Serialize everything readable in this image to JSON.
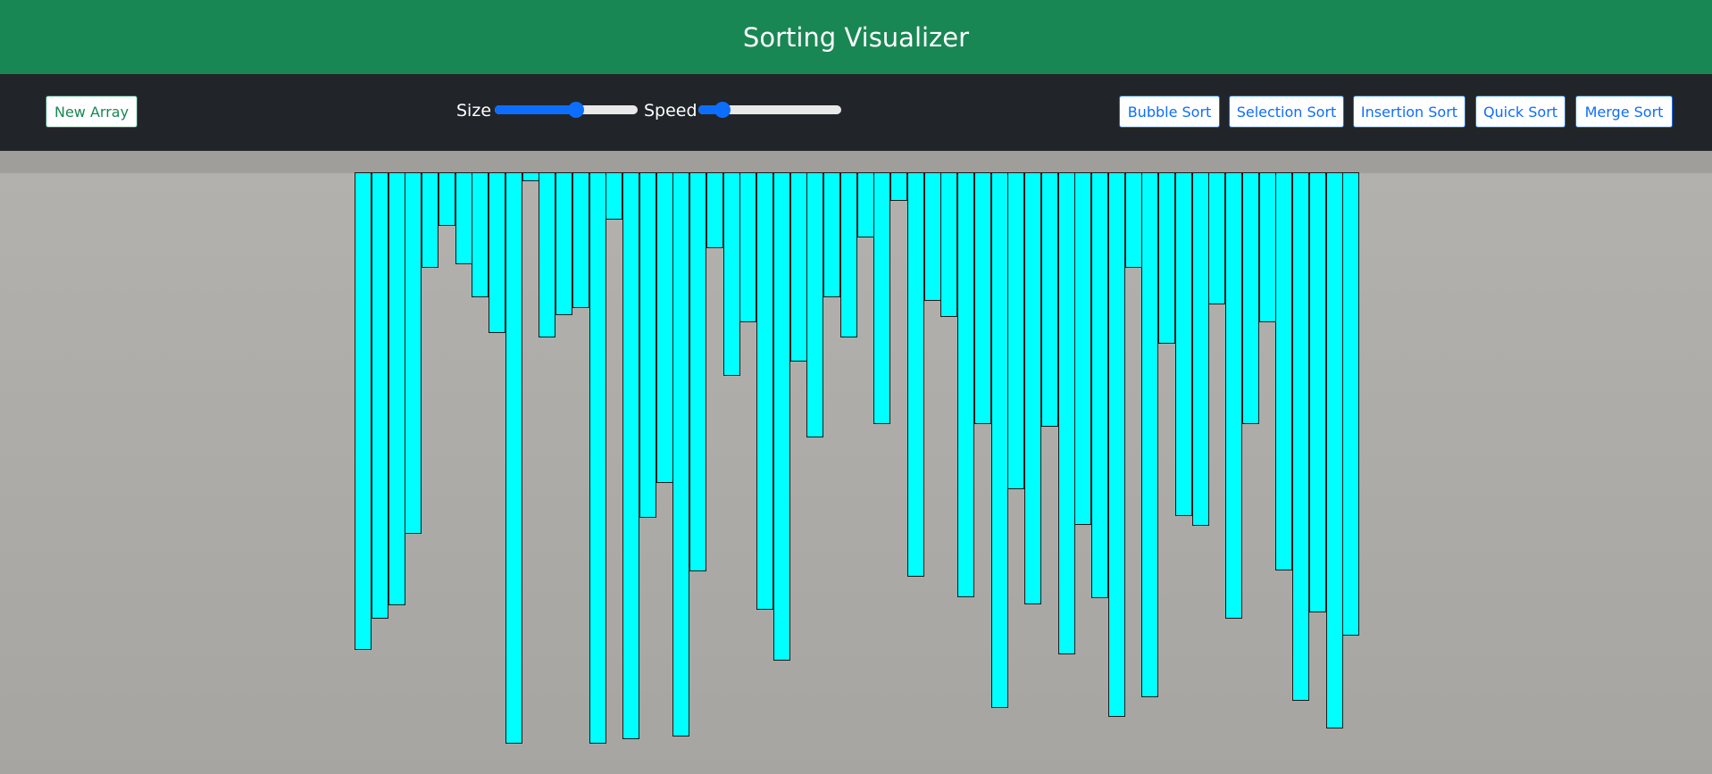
{
  "header": {
    "title": "Sorting Visualizer"
  },
  "toolbar": {
    "new_array_label": "New Array",
    "size_label": "Size",
    "speed_label": "Speed",
    "size_slider_value": 0.57,
    "speed_slider_value": 0.17,
    "sort_buttons": [
      "Bubble Sort",
      "Selection Sort",
      "Insertion Sort",
      "Quick Sort",
      "Merge Sort"
    ]
  },
  "colors": {
    "header_bg": "#198754",
    "toolbar_bg": "#212529",
    "bar_fill": "#00ffff",
    "accent": "#0d6efd"
  },
  "array": {
    "values": [
      535,
      500,
      485,
      405,
      107,
      60,
      103,
      140,
      180,
      640,
      10,
      185,
      160,
      152,
      640,
      53,
      635,
      387,
      348,
      632,
      447,
      85,
      228,
      168,
      490,
      547,
      212,
      297,
      140,
      185,
      73,
      282,
      32,
      453,
      144,
      162,
      476,
      282,
      600,
      355,
      484,
      285,
      540,
      395,
      477,
      610,
      107,
      588,
      192,
      385,
      396,
      148,
      500,
      282,
      168,
      446,
      592,
      493,
      623,
      519
    ]
  }
}
